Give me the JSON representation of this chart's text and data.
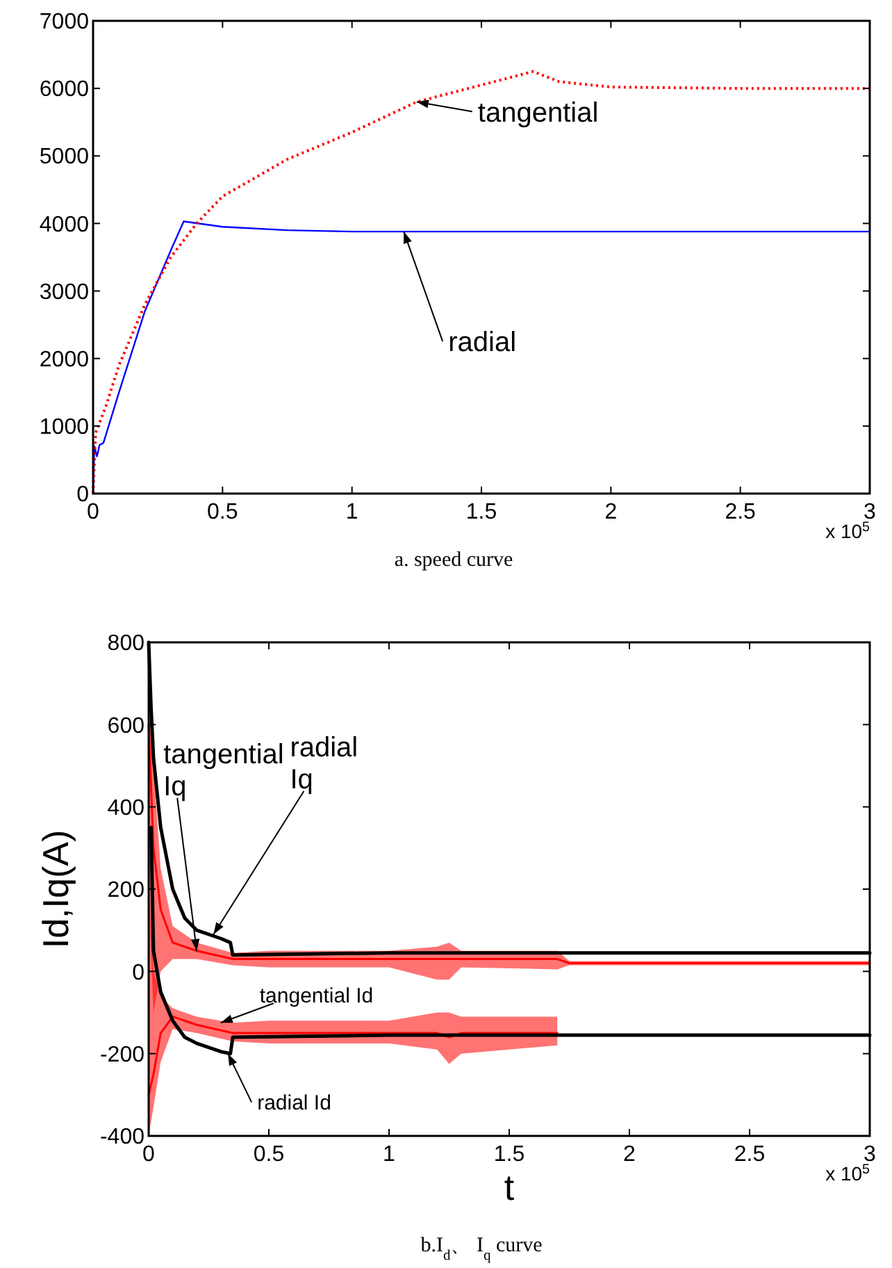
{
  "chart_data": [
    {
      "type": "line",
      "title": "a. speed curve",
      "xlim": [
        0,
        3
      ],
      "xticks": [
        0,
        0.5,
        1,
        1.5,
        2,
        2.5,
        3
      ],
      "ylim": [
        0,
        7000
      ],
      "yticks": [
        0,
        1000,
        2000,
        3000,
        4000,
        5000,
        6000,
        7000
      ],
      "grid": false,
      "series": [
        {
          "color": "#0000ff",
          "line_style": "solid",
          "x": [
            0,
            0.005,
            0.015,
            0.025,
            0.04,
            0.1,
            0.2,
            0.3,
            0.35,
            0.5,
            0.75,
            1,
            2,
            3
          ],
          "values": [
            0,
            700,
            550,
            720,
            750,
            1500,
            2700,
            3600,
            4030,
            3950,
            3900,
            3880,
            3880,
            3880
          ]
        },
        {
          "color": "#ff0000",
          "line_style": "dotted",
          "x": [
            0,
            0.01,
            0.05,
            0.1,
            0.2,
            0.3,
            0.4,
            0.5,
            0.75,
            1,
            1.25,
            1.5,
            1.7,
            1.8,
            2,
            2.5,
            3
          ],
          "values": [
            0,
            900,
            1300,
            1900,
            2800,
            3500,
            4000,
            4400,
            4950,
            5350,
            5800,
            6050,
            6250,
            6100,
            6020,
            6000,
            6000
          ]
        }
      ],
      "annotations": [
        {
          "text": "tangential",
          "x": 1.25,
          "y": 5800
        },
        {
          "text": "radial",
          "x": 1.2,
          "y": 3880
        },
        "x 10$^{5}$"
      ]
    },
    {
      "type": "line",
      "title": "b.I$_{d}$、 I$_{q}$ curve",
      "xlabel": "t",
      "ylabel": "Id,Iq(A)",
      "xlim": [
        0,
        3
      ],
      "xticks": [
        0,
        0.5,
        1,
        1.5,
        2,
        2.5,
        3
      ],
      "ylim": [
        -400,
        800
      ],
      "yticks": [
        -400,
        -200,
        0,
        200,
        400,
        600,
        800
      ],
      "grid": false,
      "series": [
        {
          "color": "#ff0000",
          "x": [
            0,
            0.02,
            0.05,
            0.1,
            0.2,
            0.35,
            0.5,
            1,
            1.2,
            1.25,
            1.3,
            1.7,
            1.75,
            3
          ],
          "values": [
            600,
            300,
            150,
            70,
            50,
            30,
            30,
            30,
            30,
            30,
            30,
            30,
            20,
            20
          ],
          "lower": [
            200,
            -100,
            0,
            30,
            30,
            15,
            10,
            10,
            -20,
            -20,
            10,
            5,
            15,
            15
          ],
          "upper": [
            800,
            500,
            250,
            110,
            70,
            45,
            50,
            50,
            60,
            70,
            50,
            50,
            25,
            25
          ]
        },
        {
          "color": "#ff0000",
          "x": [
            0,
            0.02,
            0.05,
            0.1,
            0.2,
            0.35,
            0.5,
            1,
            1.2,
            1.25,
            1.3,
            1.7
          ],
          "values": [
            -300,
            -250,
            -150,
            -110,
            -130,
            -150,
            -150,
            -150,
            -150,
            -160,
            -150,
            -150
          ],
          "lower": [
            -400,
            -330,
            -220,
            -140,
            -150,
            -170,
            -175,
            -175,
            -190,
            -225,
            -200,
            -180
          ],
          "upper": [
            200,
            0,
            -60,
            -90,
            -110,
            -125,
            -120,
            -120,
            -100,
            -100,
            -110,
            -110
          ]
        },
        {
          "color": "#000000",
          "x": [
            0,
            0.01,
            0.02,
            0.05,
            0.1,
            0.15,
            0.2,
            0.3,
            0.34,
            0.35,
            1,
            2,
            3
          ],
          "values": [
            800,
            640,
            520,
            350,
            200,
            130,
            100,
            80,
            70,
            40,
            45,
            45,
            45
          ]
        },
        {
          "color": "#000000",
          "x": [
            0.01,
            0.02,
            0.05,
            0.1,
            0.15,
            0.2,
            0.3,
            0.34,
            0.35,
            1,
            2,
            3
          ],
          "values": [
            350,
            50,
            -50,
            -120,
            -160,
            -175,
            -195,
            -200,
            -160,
            -155,
            -155,
            -155
          ]
        }
      ],
      "annotations": [
        {
          "text": "tangential\nIq",
          "x": 0.2,
          "y": 50
        },
        {
          "text": "radial\nIq",
          "x": 0.27,
          "y": 90
        },
        {
          "text": "tangential Id",
          "x": 0.3,
          "y": -125
        },
        {
          "text": "radial Id",
          "x": 0.33,
          "y": -200
        },
        "x 10$^{5}$"
      ]
    }
  ]
}
